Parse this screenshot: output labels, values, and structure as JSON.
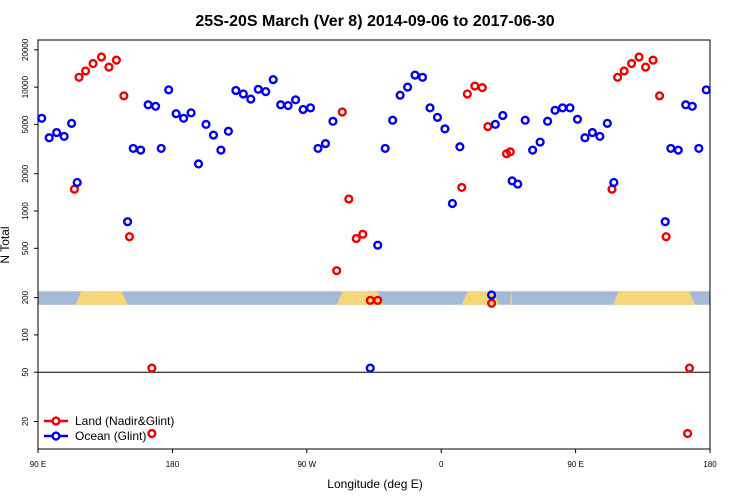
{
  "chart_data": {
    "type": "scatter",
    "title": "25S-20S March (Ver 8)   2014-09-06 to 2017-06-30",
    "xlabel": "Longitude (deg E)",
    "ylabel": "N Total",
    "xlim": [
      0,
      360
    ],
    "ylim_log": [
      12,
      24000
    ],
    "x_ticks": [
      {
        "value": 0,
        "label": "90 E"
      },
      {
        "value": 72,
        "label": "180"
      },
      {
        "value": 144,
        "label": "90 W"
      },
      {
        "value": 216,
        "label": "0"
      },
      {
        "value": 288,
        "label": "90 E"
      },
      {
        "value": 360,
        "label": "180"
      }
    ],
    "y_ticks": [
      {
        "value": 20,
        "label": "20"
      },
      {
        "value": 50,
        "label": "50"
      },
      {
        "value": 100,
        "label": "100"
      },
      {
        "value": 200,
        "label": "200"
      },
      {
        "value": 500,
        "label": "500"
      },
      {
        "value": 1000,
        "label": "1000"
      },
      {
        "value": 2000,
        "label": "2000"
      },
      {
        "value": 5000,
        "label": "5000"
      },
      {
        "value": 10000,
        "label": "10000"
      },
      {
        "value": 20000,
        "label": "20000"
      }
    ],
    "reference_line_y": 50,
    "colors": {
      "land": "#ee0000",
      "ocean": "#0000ee",
      "land_mask": "#f5d77a",
      "ocean_mask": "#a4b9d6"
    },
    "mask_band": {
      "y_range": [
        175,
        225
      ],
      "land_ranges": [
        [
          20,
          48
        ],
        [
          160,
          185
        ],
        [
          227,
          247
        ],
        [
          253,
          254
        ],
        [
          308,
          352
        ]
      ]
    },
    "series": [
      {
        "name": "Land (Nadir&Glint)",
        "color": "#ee0000",
        "points": [
          {
            "x": 19.5,
            "y": 1500
          },
          {
            "x": 22,
            "y": 12000
          },
          {
            "x": 25.5,
            "y": 13500
          },
          {
            "x": 29.5,
            "y": 15500
          },
          {
            "x": 34,
            "y": 17500
          },
          {
            "x": 38,
            "y": 14500
          },
          {
            "x": 42,
            "y": 16500
          },
          {
            "x": 46,
            "y": 8500
          },
          {
            "x": 49,
            "y": 620
          },
          {
            "x": 61,
            "y": 54
          },
          {
            "x": 61,
            "y": 16
          },
          {
            "x": 160,
            "y": 330
          },
          {
            "x": 163,
            "y": 6300
          },
          {
            "x": 166.5,
            "y": 1250
          },
          {
            "x": 170.5,
            "y": 600
          },
          {
            "x": 174,
            "y": 650
          },
          {
            "x": 178,
            "y": 190
          },
          {
            "x": 182,
            "y": 190
          },
          {
            "x": 227,
            "y": 1550
          },
          {
            "x": 230,
            "y": 8800
          },
          {
            "x": 234,
            "y": 10200
          },
          {
            "x": 238,
            "y": 9900
          },
          {
            "x": 241,
            "y": 4800
          },
          {
            "x": 243,
            "y": 180
          },
          {
            "x": 251,
            "y": 2900
          },
          {
            "x": 253,
            "y": 3000
          },
          {
            "x": 307.5,
            "y": 1500
          },
          {
            "x": 310.5,
            "y": 12000
          },
          {
            "x": 314,
            "y": 13500
          },
          {
            "x": 318,
            "y": 15500
          },
          {
            "x": 322,
            "y": 17500
          },
          {
            "x": 325.5,
            "y": 14500
          },
          {
            "x": 329.5,
            "y": 16500
          },
          {
            "x": 333,
            "y": 8500
          },
          {
            "x": 336.5,
            "y": 620
          },
          {
            "x": 348,
            "y": 16
          },
          {
            "x": 349,
            "y": 54
          }
        ]
      },
      {
        "name": "Ocean (Glint)",
        "color": "#0000ee",
        "points": [
          {
            "x": 2,
            "y": 5600
          },
          {
            "x": 6,
            "y": 3900
          },
          {
            "x": 10,
            "y": 4300
          },
          {
            "x": 14,
            "y": 4000
          },
          {
            "x": 18,
            "y": 5100
          },
          {
            "x": 21,
            "y": 1700
          },
          {
            "x": 48,
            "y": 820
          },
          {
            "x": 51,
            "y": 3200
          },
          {
            "x": 55,
            "y": 3100
          },
          {
            "x": 59,
            "y": 7200
          },
          {
            "x": 63,
            "y": 7000
          },
          {
            "x": 66,
            "y": 3200
          },
          {
            "x": 70,
            "y": 9500
          },
          {
            "x": 74,
            "y": 6100
          },
          {
            "x": 78,
            "y": 5600
          },
          {
            "x": 82,
            "y": 6200
          },
          {
            "x": 86,
            "y": 2400
          },
          {
            "x": 90,
            "y": 5000
          },
          {
            "x": 94,
            "y": 4100
          },
          {
            "x": 98,
            "y": 3100
          },
          {
            "x": 102,
            "y": 4400
          },
          {
            "x": 106,
            "y": 9400
          },
          {
            "x": 110,
            "y": 8800
          },
          {
            "x": 114,
            "y": 8000
          },
          {
            "x": 118,
            "y": 9600
          },
          {
            "x": 122,
            "y": 9200
          },
          {
            "x": 126,
            "y": 11500
          },
          {
            "x": 130,
            "y": 7200
          },
          {
            "x": 134,
            "y": 7100
          },
          {
            "x": 138,
            "y": 7900
          },
          {
            "x": 142,
            "y": 6600
          },
          {
            "x": 146,
            "y": 6800
          },
          {
            "x": 150,
            "y": 3200
          },
          {
            "x": 154,
            "y": 3500
          },
          {
            "x": 158,
            "y": 5300
          },
          {
            "x": 178,
            "y": 54
          },
          {
            "x": 182,
            "y": 530
          },
          {
            "x": 186,
            "y": 3200
          },
          {
            "x": 190,
            "y": 5400
          },
          {
            "x": 194,
            "y": 8600
          },
          {
            "x": 198,
            "y": 10000
          },
          {
            "x": 202,
            "y": 12500
          },
          {
            "x": 206,
            "y": 12000
          },
          {
            "x": 210,
            "y": 6800
          },
          {
            "x": 214,
            "y": 5700
          },
          {
            "x": 218,
            "y": 4600
          },
          {
            "x": 222,
            "y": 1150
          },
          {
            "x": 226,
            "y": 3300
          },
          {
            "x": 243,
            "y": 210
          },
          {
            "x": 245,
            "y": 5000
          },
          {
            "x": 249,
            "y": 5900
          },
          {
            "x": 254,
            "y": 1750
          },
          {
            "x": 257,
            "y": 1650
          },
          {
            "x": 261,
            "y": 5400
          },
          {
            "x": 265,
            "y": 3100
          },
          {
            "x": 269,
            "y": 3600
          },
          {
            "x": 273,
            "y": 5300
          },
          {
            "x": 277,
            "y": 6500
          },
          {
            "x": 281,
            "y": 6800
          },
          {
            "x": 285,
            "y": 6800
          },
          {
            "x": 289,
            "y": 5500
          },
          {
            "x": 293,
            "y": 3900
          },
          {
            "x": 297,
            "y": 4300
          },
          {
            "x": 301,
            "y": 4000
          },
          {
            "x": 305,
            "y": 5100
          },
          {
            "x": 308.5,
            "y": 1700
          },
          {
            "x": 336,
            "y": 820
          },
          {
            "x": 339,
            "y": 3200
          },
          {
            "x": 343,
            "y": 3100
          },
          {
            "x": 347,
            "y": 7200
          },
          {
            "x": 350.5,
            "y": 7000
          },
          {
            "x": 354,
            "y": 3200
          },
          {
            "x": 358,
            "y": 9500
          }
        ]
      }
    ],
    "legend": {
      "placement": "bottom-left",
      "entries": [
        "Land (Nadir&Glint)",
        "Ocean (Glint)"
      ]
    }
  }
}
